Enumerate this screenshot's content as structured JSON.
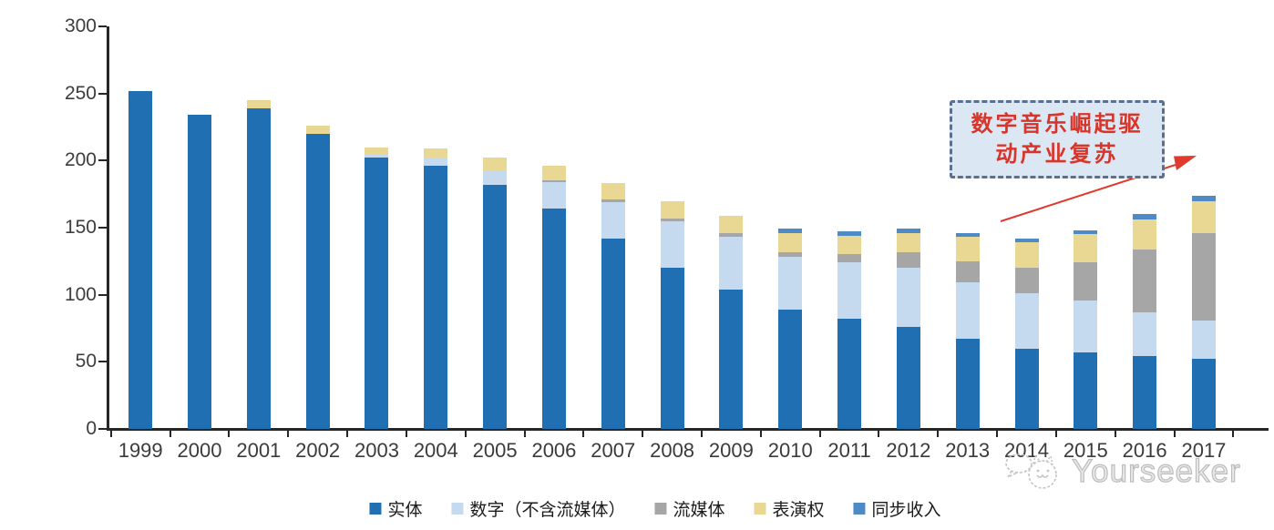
{
  "chart_data": {
    "type": "bar",
    "stacked": true,
    "title": "",
    "categories": [
      "1999",
      "2000",
      "2001",
      "2002",
      "2003",
      "2004",
      "2005",
      "2006",
      "2007",
      "2008",
      "2009",
      "2010",
      "2011",
      "2012",
      "2013",
      "2014",
      "2015",
      "2016",
      "2017"
    ],
    "series": [
      {
        "name": "实体",
        "color": "#1f6fb2",
        "values": [
          252,
          234,
          239,
          220,
          202,
          196,
          182,
          164,
          142,
          120,
          104,
          89,
          82,
          76,
          67,
          60,
          57,
          54,
          52
        ]
      },
      {
        "name": "数字（不含流媒体）",
        "color": "#c5d9ef",
        "values": [
          0,
          0,
          0,
          0,
          2,
          6,
          11,
          20,
          27,
          35,
          39,
          39,
          42,
          44,
          42,
          41,
          39,
          33,
          29
        ]
      },
      {
        "name": "流媒体",
        "color": "#a6a6a6",
        "values": [
          0,
          0,
          0,
          0,
          0,
          0,
          0,
          1,
          2,
          2,
          3,
          4,
          6,
          12,
          16,
          19,
          28,
          47,
          65
        ]
      },
      {
        "name": "表演权",
        "color": "#e8d894",
        "values": [
          0,
          0,
          6,
          6,
          6,
          7,
          9,
          11,
          12,
          13,
          13,
          14,
          14,
          14,
          18,
          19,
          21,
          22,
          24
        ]
      },
      {
        "name": "同步收入",
        "color": "#4e8bc6",
        "values": [
          0,
          0,
          0,
          0,
          0,
          0,
          0,
          0,
          0,
          0,
          0,
          3,
          3,
          3,
          3,
          3,
          3,
          4,
          4
        ]
      }
    ],
    "ylim": [
      0,
      300
    ],
    "yticks": [
      0,
      50,
      100,
      150,
      200,
      250,
      300
    ],
    "grid": false,
    "legend_position": "bottom",
    "annotation": {
      "lines": [
        "数字音乐崛起驱",
        "动产业复苏"
      ],
      "text_color": "#d8352a",
      "box_fill": "#dce7f4",
      "box_border": "#5b6f92",
      "arrow_color": "#e03a2f"
    }
  },
  "watermark": {
    "brand": "Yourseeker"
  }
}
